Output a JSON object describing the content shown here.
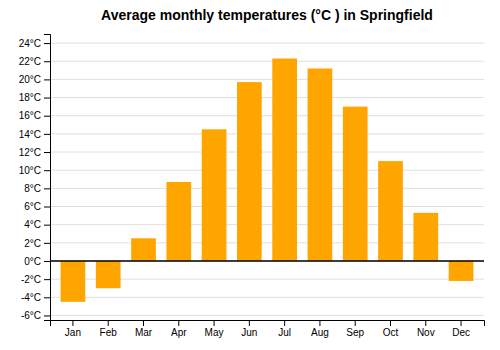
{
  "chart_data": {
    "type": "bar",
    "title": "Average monthly temperatures (°C ) in Springfield",
    "categories": [
      "Jan",
      "Feb",
      "Mar",
      "Apr",
      "May",
      "Jun",
      "Jul",
      "Aug",
      "Sep",
      "Oct",
      "Nov",
      "Dec"
    ],
    "values": [
      -4.5,
      -3.0,
      2.5,
      8.7,
      14.5,
      19.7,
      22.3,
      21.2,
      17.0,
      11.0,
      5.3,
      -2.2
    ],
    "color": "#FFA500",
    "ylim": [
      -6.5,
      25
    ],
    "yticks": [
      {
        "value": -6,
        "label": "-6°C"
      },
      {
        "value": -4,
        "label": "-4°C"
      },
      {
        "value": -2,
        "label": "-2°C"
      },
      {
        "value": 0,
        "label": "0°C"
      },
      {
        "value": 2,
        "label": "2°C"
      },
      {
        "value": 4,
        "label": "4°C"
      },
      {
        "value": 6,
        "label": "6°C"
      },
      {
        "value": 8,
        "label": "8°C"
      },
      {
        "value": 10,
        "label": "10°C"
      },
      {
        "value": 12,
        "label": "12°C"
      },
      {
        "value": 14,
        "label": "14°C"
      },
      {
        "value": 16,
        "label": "16°C"
      },
      {
        "value": 18,
        "label": "18°C"
      },
      {
        "value": 20,
        "label": "20°C"
      },
      {
        "value": 22,
        "label": "22°C"
      },
      {
        "value": 24,
        "label": "24°C"
      }
    ],
    "grid": true
  }
}
